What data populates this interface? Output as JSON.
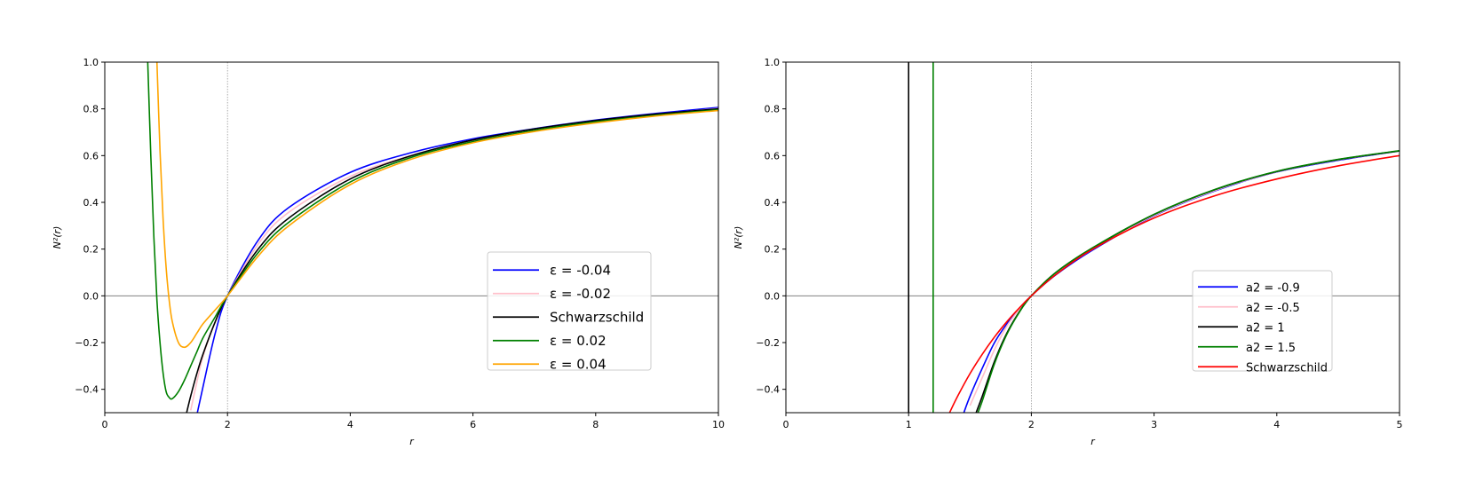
{
  "chart_data": [
    {
      "type": "line",
      "xlabel": "r",
      "ylabel": "N²(r)",
      "xlim": [
        0,
        10
      ],
      "ylim": [
        -0.5,
        1.0
      ],
      "xticks": [
        0,
        2,
        4,
        6,
        8,
        10
      ],
      "yticks": [
        -0.4,
        -0.2,
        0.0,
        0.2,
        0.4,
        0.6,
        0.8,
        1.0
      ],
      "xtick_labels": [
        "0",
        "2",
        "4",
        "6",
        "8",
        "10"
      ],
      "ytick_labels": [
        "−0.4",
        "−0.2",
        "0.0",
        "0.2",
        "0.4",
        "0.6",
        "0.8",
        "1.0"
      ],
      "reference_lines": {
        "horizontal_y": 0,
        "vertical_x": 2
      },
      "legend_placement": "lower-right",
      "series": [
        {
          "name": "ε = -0.04",
          "color": "#0000ff",
          "x": [
            1.5,
            1.6,
            1.8,
            2,
            2.5,
            3,
            4,
            5,
            6,
            7,
            8,
            9,
            10
          ],
          "y": [
            -0.51,
            -0.39,
            -0.16,
            0.0,
            0.238,
            0.378,
            0.528,
            0.613,
            0.672,
            0.715,
            0.752,
            0.781,
            0.806
          ]
        },
        {
          "name": "ε = -0.02",
          "color": "#ffc0cb",
          "x": [
            1.4,
            1.5,
            1.6,
            1.8,
            2,
            2.5,
            3,
            4,
            5,
            6,
            7,
            8,
            9,
            10
          ],
          "y": [
            -0.49,
            -0.37,
            -0.26,
            -0.11,
            0.0,
            0.221,
            0.358,
            0.511,
            0.601,
            0.663,
            0.707,
            0.747,
            0.776,
            0.802
          ]
        },
        {
          "name": "Schwarzschild",
          "color": "#000000",
          "x": [
            1.33,
            1.4,
            1.5,
            1.6,
            1.8,
            2,
            2.5,
            3,
            4,
            5,
            6,
            7,
            8,
            9,
            10
          ],
          "y": [
            -0.504,
            -0.429,
            -0.333,
            -0.25,
            -0.111,
            0.0,
            0.2,
            0.333,
            0.5,
            0.6,
            0.667,
            0.714,
            0.75,
            0.778,
            0.8
          ]
        },
        {
          "name": "ε = 0.02",
          "color": "#008000",
          "x": [
            0.7,
            0.75,
            0.8,
            0.85,
            0.9,
            0.95,
            1.0,
            1.05,
            1.1,
            1.2,
            1.3,
            1.4,
            1.5,
            1.6,
            1.8,
            2,
            2.5,
            3,
            4,
            5,
            6,
            7,
            8,
            9,
            10
          ],
          "y": [
            1.0,
            0.6,
            0.25,
            -0.02,
            -0.2,
            -0.33,
            -0.41,
            -0.435,
            -0.44,
            -0.41,
            -0.36,
            -0.3,
            -0.24,
            -0.18,
            -0.09,
            0.0,
            0.185,
            0.315,
            0.487,
            0.593,
            0.66,
            0.708,
            0.745,
            0.773,
            0.796
          ]
        },
        {
          "name": "ε = 0.04",
          "color": "#ffa500",
          "x": [
            0.85,
            0.9,
            0.95,
            1.0,
            1.05,
            1.1,
            1.2,
            1.3,
            1.4,
            1.5,
            1.6,
            1.8,
            2,
            2.5,
            3,
            4,
            5,
            6,
            7,
            8,
            9,
            10
          ],
          "y": [
            1.0,
            0.62,
            0.33,
            0.12,
            -0.02,
            -0.11,
            -0.2,
            -0.22,
            -0.2,
            -0.16,
            -0.12,
            -0.06,
            0.0,
            0.17,
            0.3,
            0.476,
            0.585,
            0.655,
            0.703,
            0.74,
            0.77,
            0.793
          ]
        }
      ]
    },
    {
      "type": "line",
      "xlabel": "r",
      "ylabel": "N²(r)",
      "xlim": [
        0,
        5
      ],
      "ylim": [
        -0.5,
        1.0
      ],
      "xticks": [
        0,
        1,
        2,
        3,
        4,
        5
      ],
      "yticks": [
        -0.4,
        -0.2,
        0.0,
        0.2,
        0.4,
        0.6,
        0.8,
        1.0
      ],
      "xtick_labels": [
        "0",
        "1",
        "2",
        "3",
        "4",
        "5"
      ],
      "ytick_labels": [
        "−0.4",
        "−0.2",
        "0.0",
        "0.2",
        "0.4",
        "0.6",
        "0.8",
        "1.0"
      ],
      "reference_lines": {
        "horizontal_y": 0,
        "vertical_x": 2
      },
      "legend_placement": "lower-right",
      "series": [
        {
          "name": "a2 = -0.9",
          "color": "#0000ff",
          "x": [
            1.45,
            1.5,
            1.6,
            1.7,
            1.8,
            1.9,
            2,
            2.2,
            2.5,
            3,
            3.5,
            4,
            4.5,
            5
          ],
          "y": [
            -0.5,
            -0.43,
            -0.31,
            -0.2,
            -0.12,
            -0.055,
            0.0,
            0.09,
            0.196,
            0.343,
            0.45,
            0.53,
            0.58,
            0.62
          ]
        },
        {
          "name": "a2 = -0.5",
          "color": "#ffc0cb",
          "x": [
            1.5,
            1.6,
            1.7,
            1.8,
            1.9,
            2,
            2.2,
            2.5,
            3,
            3.5,
            4,
            4.5,
            5
          ],
          "y": [
            -0.47,
            -0.35,
            -0.23,
            -0.13,
            -0.06,
            0.0,
            0.095,
            0.2,
            0.345,
            0.452,
            0.531,
            0.582,
            0.62
          ]
        },
        {
          "name": "a2 = 1",
          "color": "#000000",
          "x": [
            1.55,
            1.6,
            1.7,
            1.8,
            1.9,
            2,
            2.2,
            2.5,
            3,
            3.5,
            4,
            4.5,
            5
          ],
          "y": [
            -0.5,
            -0.43,
            -0.28,
            -0.16,
            -0.07,
            0.0,
            0.1,
            0.205,
            0.348,
            0.455,
            0.532,
            0.583,
            0.62
          ]
        },
        {
          "name": "a2 = 1.5",
          "color": "#008000",
          "x": [
            1.55,
            1.6,
            1.7,
            1.8,
            1.9,
            2,
            2.2,
            2.5,
            3,
            3.5,
            4,
            4.5,
            5
          ],
          "y": [
            -0.52,
            -0.45,
            -0.29,
            -0.165,
            -0.072,
            0.0,
            0.1,
            0.206,
            0.349,
            0.456,
            0.533,
            0.584,
            0.621
          ]
        },
        {
          "name": "Schwarzschild",
          "color": "#ff0000",
          "x": [
            1.33,
            1.4,
            1.5,
            1.6,
            1.7,
            1.8,
            1.9,
            2,
            2.2,
            2.5,
            3,
            3.5,
            4,
            4.5,
            5
          ],
          "y": [
            -0.504,
            -0.429,
            -0.333,
            -0.25,
            -0.176,
            -0.111,
            -0.053,
            0.0,
            0.091,
            0.2,
            0.333,
            0.429,
            0.5,
            0.556,
            0.6
          ]
        }
      ],
      "vertical_lines": [
        {
          "x": 1.0,
          "color": "#000000"
        },
        {
          "x": 1.2,
          "color": "#008000"
        }
      ]
    }
  ]
}
